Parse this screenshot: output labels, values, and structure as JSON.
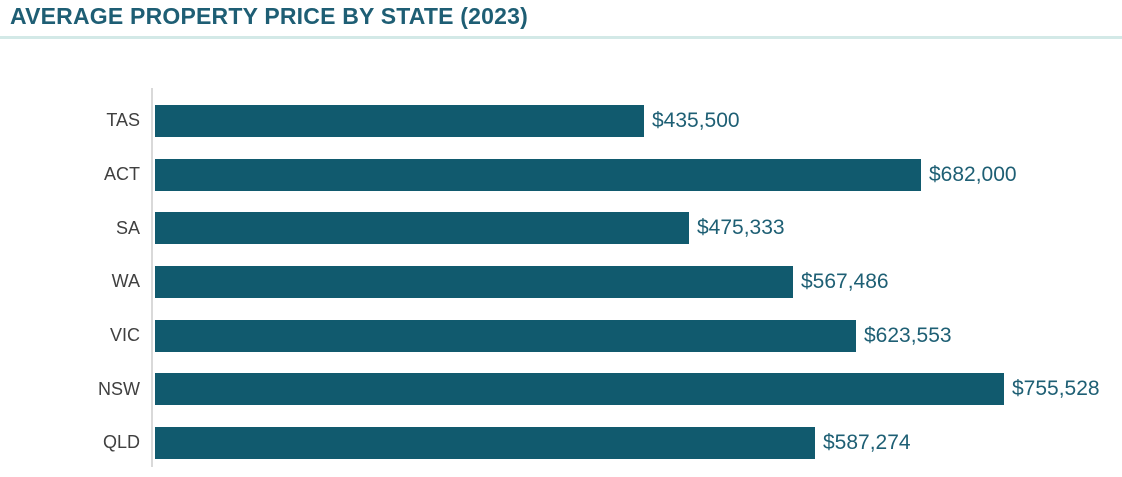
{
  "header": {
    "title": "AVERAGE PROPERTY PRICE BY STATE (2023)"
  },
  "chart_data": {
    "type": "bar",
    "orientation": "horizontal",
    "title": "AVERAGE PROPERTY PRICE BY STATE (2023)",
    "categories": [
      "TAS",
      "ACT",
      "SA",
      "WA",
      "VIC",
      "NSW",
      "QLD"
    ],
    "values": [
      435500,
      682000,
      475333,
      567486,
      623553,
      755528,
      587274
    ],
    "value_labels": [
      "$435,500",
      "$682,000",
      "$475,333",
      "$567,486",
      "$623,553",
      "$755,528",
      "$587,274"
    ],
    "xlabel": "",
    "ylabel": "",
    "legend": false,
    "grid": false,
    "axis_ticks_visible": false,
    "colors": {
      "bar": "#115A6E",
      "value_label": "#1E5F74",
      "category_label": "#404040",
      "title": "#1E5E74",
      "title_divider": "#D3E9E7",
      "axis_line": "#D9D9D9"
    }
  }
}
